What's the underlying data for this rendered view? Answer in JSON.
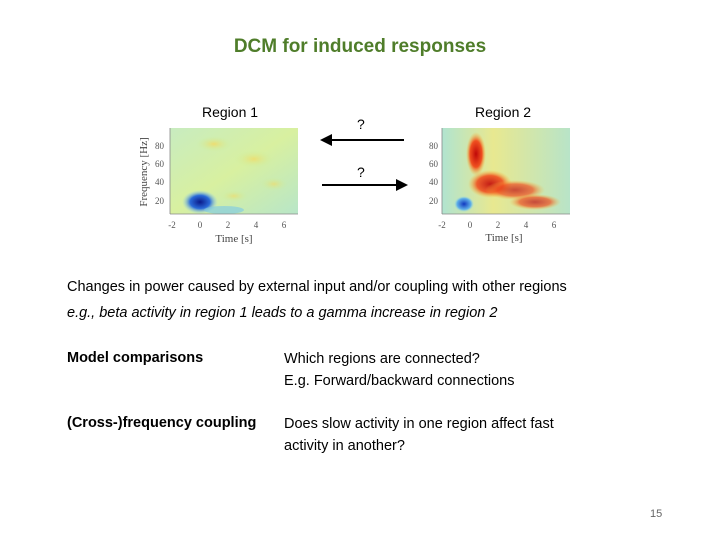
{
  "slide": {
    "title": "DCM for induced responses",
    "region1_label": "Region 1",
    "region2_label": "Region 2",
    "question_top": "?",
    "question_bottom": "?",
    "plot1": {
      "ylabel": "Frequency [Hz]",
      "xlabel": "Time [s]",
      "yticks": [
        "80",
        "60",
        "40",
        "20"
      ],
      "xticks": [
        "-2",
        "0",
        "2",
        "4",
        "6"
      ]
    },
    "plot2": {
      "xlabel": "Time [s]",
      "yticks": [
        "80",
        "60",
        "40",
        "20"
      ],
      "xticks": [
        "-2",
        "0",
        "2",
        "4",
        "6"
      ]
    },
    "line1": "Changes in power caused by external input and/or coupling with other regions",
    "line2": "e.g., beta activity in region 1 leads to a gamma increase in region 2",
    "rows": [
      {
        "term": "Model comparisons",
        "desc_line1": "Which regions are connected?",
        "desc_line2": "E.g. Forward/backward connections"
      },
      {
        "term": "(Cross-)frequency coupling",
        "desc_line1": "Does slow activity in one region affect fast",
        "desc_line2": "activity in another?"
      }
    ],
    "page_number": "15"
  },
  "colors": {
    "title": "#4f7d2a",
    "heatmap_low": "#0a2aa0",
    "heatmap_high": "#d01010",
    "heatmap_mid": "#e8f080"
  }
}
